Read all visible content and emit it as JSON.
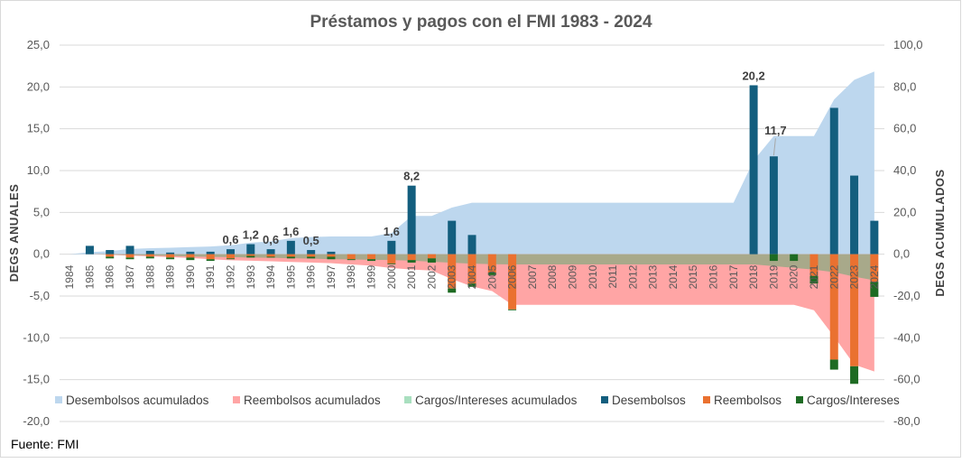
{
  "chart_data": {
    "type": "bar",
    "title": "Préstamos y pagos con el FMI 1983 - 2024",
    "ylabel_left": "DEGS ANUALES",
    "ylabel_right": "DEGS ACUMULADOS",
    "ylim_left": [
      -20,
      25
    ],
    "ylim_right": [
      -80,
      100
    ],
    "yticks_left": [
      "25,0",
      "20,0",
      "15,0",
      "10,0",
      "5,0",
      "0,0",
      "-5,0",
      "-10,0",
      "-15,0",
      "-20,0"
    ],
    "yticks_right": [
      "100,0",
      "80,0",
      "60,0",
      "40,0",
      "20,0",
      "0,0",
      "-20,0",
      "-40,0",
      "-60,0",
      "-80,0"
    ],
    "grid": true,
    "legend_position": "bottom",
    "source": "Fuente: FMI",
    "categories": [
      "1984",
      "1985",
      "1986",
      "1987",
      "1988",
      "1989",
      "1990",
      "1991",
      "1992",
      "1993",
      "1994",
      "1995",
      "1996",
      "1997",
      "1998",
      "1999",
      "2000",
      "2001",
      "2002",
      "2003",
      "2004",
      "2005",
      "2006",
      "2007",
      "2008",
      "2009",
      "2010",
      "2011",
      "2012",
      "2013",
      "2014",
      "2015",
      "2016",
      "2017",
      "2018",
      "2019",
      "2020",
      "2021",
      "2022",
      "2023",
      "2024"
    ],
    "series": [
      {
        "name": "Desembolsos acumulados",
        "type": "area",
        "axis": "right",
        "color": "#bdd7ee",
        "values": [
          0,
          1.0,
          1.5,
          2.5,
          2.9,
          3.1,
          3.4,
          3.7,
          4.3,
          5.5,
          6.1,
          7.7,
          8.2,
          8.5,
          8.5,
          8.5,
          10.1,
          18.3,
          18.3,
          22.3,
          24.6,
          24.6,
          24.6,
          24.6,
          24.6,
          24.6,
          24.6,
          24.6,
          24.6,
          24.6,
          24.6,
          24.6,
          24.6,
          24.6,
          44.8,
          56.5,
          56.5,
          56.5,
          74.0,
          83.4,
          87.4
        ]
      },
      {
        "name": "Reembolsos acumulados",
        "type": "area",
        "axis": "right",
        "color": "#ffa5a5",
        "values": [
          0,
          0,
          -0.3,
          -0.7,
          -1.0,
          -1.4,
          -1.8,
          -2.4,
          -2.9,
          -3.1,
          -3.4,
          -3.7,
          -4.0,
          -4.3,
          -4.9,
          -5.5,
          -6.6,
          -7.3,
          -7.8,
          -11.9,
          -15.4,
          -17.6,
          -24.2,
          -24.2,
          -24.2,
          -24.2,
          -24.2,
          -24.2,
          -24.2,
          -24.2,
          -24.2,
          -24.2,
          -24.2,
          -24.2,
          -24.2,
          -24.2,
          -24.2,
          -26.8,
          -39.4,
          -52.8,
          -56.1
        ]
      },
      {
        "name": "Cargos/Intereses acumulados",
        "type": "area",
        "axis": "right",
        "color": "#a9dfbf",
        "values": [
          0,
          0,
          -0.2,
          -0.4,
          -0.6,
          -0.8,
          -1.1,
          -1.3,
          -1.4,
          -1.6,
          -1.7,
          -1.9,
          -2.1,
          -2.4,
          -2.5,
          -2.7,
          -2.8,
          -3.1,
          -3.6,
          -4.1,
          -4.5,
          -4.8,
          -4.9,
          -4.9,
          -4.9,
          -4.9,
          -4.9,
          -4.9,
          -4.9,
          -4.9,
          -4.9,
          -4.9,
          -4.9,
          -4.9,
          -4.9,
          -5.7,
          -6.5,
          -7.4,
          -8.6,
          -10.7,
          -12.5
        ]
      },
      {
        "name": "Desembolsos",
        "type": "bar",
        "axis": "left",
        "color": "#135e7e",
        "values": [
          0,
          1.0,
          0.5,
          1.0,
          0.4,
          0.2,
          0.3,
          0.3,
          0.6,
          1.2,
          0.6,
          1.6,
          0.5,
          0.3,
          0,
          0,
          1.6,
          8.2,
          0,
          4.0,
          2.3,
          0,
          0,
          0,
          0,
          0,
          0,
          0,
          0,
          0,
          0,
          0,
          0,
          0,
          20.2,
          11.7,
          0,
          0,
          17.5,
          9.4,
          4.0
        ]
      },
      {
        "name": "Reembolsos",
        "type": "bar",
        "axis": "left",
        "color": "#ea7130",
        "values": [
          0,
          0,
          -0.3,
          -0.4,
          -0.3,
          -0.4,
          -0.4,
          -0.6,
          -0.5,
          -0.2,
          -0.3,
          -0.3,
          -0.3,
          -0.3,
          -0.6,
          -0.6,
          -1.1,
          -0.7,
          -0.5,
          -4.1,
          -3.5,
          -2.2,
          -6.6,
          0,
          0,
          0,
          0,
          0,
          0,
          0,
          0,
          0,
          0,
          0,
          0,
          0,
          0,
          -2.6,
          -12.6,
          -13.4,
          -3.3
        ]
      },
      {
        "name": "Cargos/Intereses",
        "type": "bar",
        "axis": "left",
        "color": "#1e6b23",
        "values": [
          0,
          0,
          -0.2,
          -0.2,
          -0.2,
          -0.2,
          -0.3,
          -0.2,
          -0.1,
          -0.2,
          -0.1,
          -0.2,
          -0.2,
          -0.3,
          -0.1,
          -0.2,
          -0.1,
          -0.3,
          -0.5,
          -0.5,
          -0.4,
          -0.3,
          -0.1,
          0,
          0,
          0,
          0,
          0,
          0,
          0,
          0,
          0,
          0,
          0,
          0,
          -0.8,
          -0.8,
          -0.9,
          -1.2,
          -2.1,
          -1.8
        ]
      }
    ],
    "data_labels": [
      {
        "category": "1992",
        "text": "0,6"
      },
      {
        "category": "1993",
        "text": "1,2"
      },
      {
        "category": "1994",
        "text": "0,6"
      },
      {
        "category": "1995",
        "text": "1,6"
      },
      {
        "category": "1996",
        "text": "0,5"
      },
      {
        "category": "2000",
        "text": "1,6"
      },
      {
        "category": "2001",
        "text": "8,2"
      },
      {
        "category": "2018",
        "text": "20,2"
      },
      {
        "category": "2019",
        "text": "11,7"
      }
    ]
  }
}
